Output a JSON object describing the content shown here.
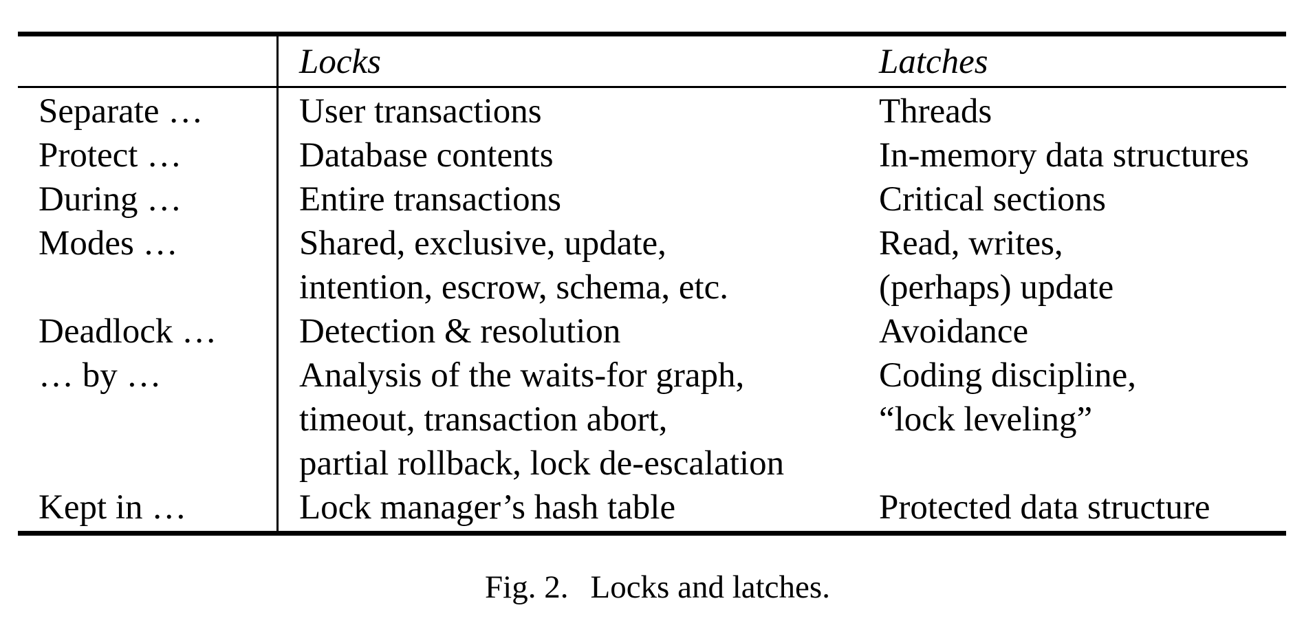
{
  "table": {
    "headers": {
      "label": "",
      "locks": "Locks",
      "latches": "Latches"
    },
    "rows": [
      {
        "label": "Separate …",
        "locks": [
          "User transactions"
        ],
        "latches": [
          "Threads"
        ]
      },
      {
        "label": "Protect …",
        "locks": [
          "Database contents"
        ],
        "latches": [
          "In-memory data structures"
        ]
      },
      {
        "label": "During …",
        "locks": [
          "Entire transactions"
        ],
        "latches": [
          "Critical sections"
        ]
      },
      {
        "label": "Modes …",
        "locks": [
          "Shared, exclusive, update,",
          "intention, escrow, schema, etc."
        ],
        "latches": [
          "Read, writes,",
          "(perhaps) update"
        ]
      },
      {
        "label": "Deadlock …",
        "locks": [
          "Detection & resolution"
        ],
        "latches": [
          "Avoidance"
        ]
      },
      {
        "label": "… by …",
        "locks": [
          "Analysis of the waits-for graph,",
          "timeout, transaction abort,",
          "partial rollback, lock de-escalation"
        ],
        "latches": [
          "Coding discipline,",
          "“lock leveling”"
        ]
      },
      {
        "label": "Kept in …",
        "locks": [
          "Lock manager’s hash table"
        ],
        "latches": [
          "Protected data structure"
        ]
      }
    ]
  },
  "caption": {
    "label": "Fig. 2.",
    "text": "Locks and latches."
  }
}
